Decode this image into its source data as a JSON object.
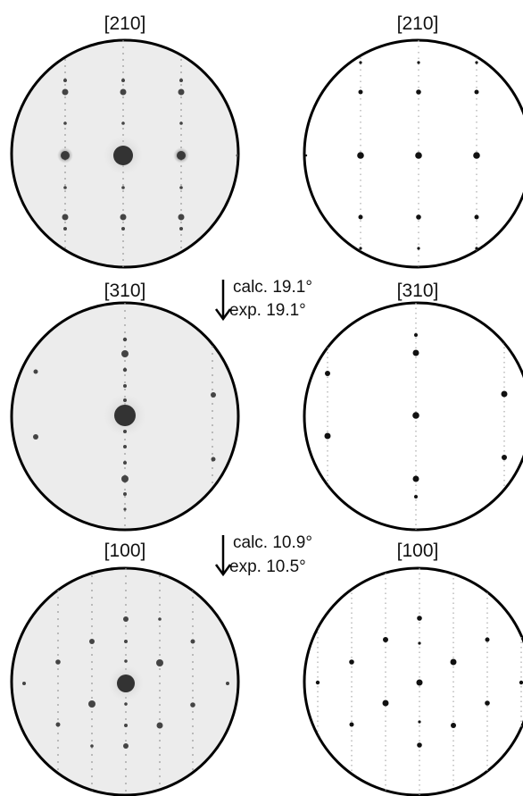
{
  "panels": {
    "row1": {
      "exp_label": "[210]",
      "calc_label": "[210]"
    },
    "row2": {
      "exp_label": "[310]",
      "calc_label": "[310]"
    },
    "row3": {
      "exp_label": "[100]",
      "calc_label": "[100]"
    }
  },
  "rotations": {
    "first": {
      "calc": "calc. 19.1°",
      "exp": "exp. 19.1°"
    },
    "second": {
      "calc": "calc. 10.9°",
      "exp": "exp. 10.5°"
    }
  },
  "colors": {
    "experimental_background": "#ececec",
    "circle_stroke": "#000000",
    "spot_color": "#1a1a1a"
  },
  "icons": [
    "down-arrow-icon",
    "down-arrow-icon"
  ]
}
